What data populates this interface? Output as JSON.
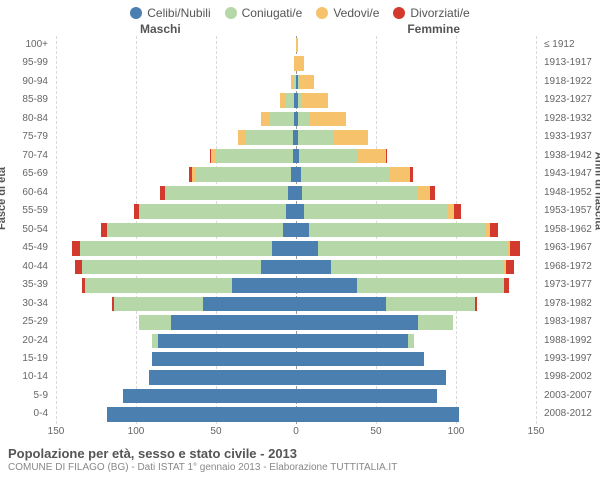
{
  "legend": [
    {
      "label": "Celibi/Nubili",
      "color": "#4a7fb0"
    },
    {
      "label": "Coniugati/e",
      "color": "#b6d7a8"
    },
    {
      "label": "Vedovi/e",
      "color": "#f6c26b"
    },
    {
      "label": "Divorziati/e",
      "color": "#d23a2e"
    }
  ],
  "side_labels": {
    "left": "Maschi",
    "right": "Femmine"
  },
  "axis_titles": {
    "left": "Fasce di età",
    "right": "Anni di nascita"
  },
  "age_labels": [
    "100+",
    "95-99",
    "90-94",
    "85-89",
    "80-84",
    "75-79",
    "70-74",
    "65-69",
    "60-64",
    "55-59",
    "50-54",
    "45-49",
    "40-44",
    "35-39",
    "30-34",
    "25-29",
    "20-24",
    "15-19",
    "10-14",
    "5-9",
    "0-4"
  ],
  "year_labels": [
    "≤ 1912",
    "1913-1917",
    "1918-1922",
    "1923-1927",
    "1928-1932",
    "1933-1937",
    "1938-1942",
    "1943-1947",
    "1948-1952",
    "1953-1957",
    "1958-1962",
    "1963-1967",
    "1968-1972",
    "1973-1977",
    "1978-1982",
    "1983-1987",
    "1988-1992",
    "1993-1997",
    "1998-2002",
    "2003-2007",
    "2008-2012"
  ],
  "xaxis": {
    "max": 150,
    "ticks": [
      150,
      100,
      50,
      0,
      50,
      100,
      150
    ]
  },
  "colors": {
    "single": "#4a7fb0",
    "married": "#b6d7a8",
    "widowed": "#f6c26b",
    "divorced": "#d23a2e",
    "grid": "#d9d9d9",
    "center": "#999999",
    "bg": "#ffffff"
  },
  "rows": [
    {
      "m": [
        0,
        0,
        0,
        0
      ],
      "f": [
        0,
        0,
        1,
        0
      ]
    },
    {
      "m": [
        0,
        0,
        1,
        0
      ],
      "f": [
        0,
        0,
        5,
        0
      ]
    },
    {
      "m": [
        0,
        1,
        2,
        0
      ],
      "f": [
        1,
        1,
        9,
        0
      ]
    },
    {
      "m": [
        1,
        6,
        3,
        0
      ],
      "f": [
        1,
        3,
        16,
        0
      ]
    },
    {
      "m": [
        1,
        16,
        5,
        0
      ],
      "f": [
        1,
        8,
        22,
        0
      ]
    },
    {
      "m": [
        2,
        30,
        4,
        0
      ],
      "f": [
        1,
        22,
        22,
        0
      ]
    },
    {
      "m": [
        2,
        48,
        3,
        1
      ],
      "f": [
        2,
        36,
        18,
        1
      ]
    },
    {
      "m": [
        3,
        60,
        2,
        2
      ],
      "f": [
        3,
        56,
        12,
        2
      ]
    },
    {
      "m": [
        5,
        76,
        1,
        3
      ],
      "f": [
        4,
        72,
        8,
        3
      ]
    },
    {
      "m": [
        6,
        92,
        0,
        3
      ],
      "f": [
        5,
        90,
        4,
        4
      ]
    },
    {
      "m": [
        8,
        110,
        0,
        4
      ],
      "f": [
        8,
        110,
        3,
        5
      ]
    },
    {
      "m": [
        15,
        120,
        0,
        5
      ],
      "f": [
        14,
        118,
        2,
        6
      ]
    },
    {
      "m": [
        22,
        112,
        0,
        4
      ],
      "f": [
        22,
        108,
        1,
        5
      ]
    },
    {
      "m": [
        40,
        92,
        0,
        2
      ],
      "f": [
        38,
        92,
        0,
        3
      ]
    },
    {
      "m": [
        58,
        56,
        0,
        1
      ],
      "f": [
        56,
        56,
        0,
        1
      ]
    },
    {
      "m": [
        78,
        20,
        0,
        0
      ],
      "f": [
        76,
        22,
        0,
        0
      ]
    },
    {
      "m": [
        86,
        4,
        0,
        0
      ],
      "f": [
        70,
        4,
        0,
        0
      ]
    },
    {
      "m": [
        90,
        0,
        0,
        0
      ],
      "f": [
        80,
        0,
        0,
        0
      ]
    },
    {
      "m": [
        92,
        0,
        0,
        0
      ],
      "f": [
        94,
        0,
        0,
        0
      ]
    },
    {
      "m": [
        108,
        0,
        0,
        0
      ],
      "f": [
        88,
        0,
        0,
        0
      ]
    },
    {
      "m": [
        118,
        0,
        0,
        0
      ],
      "f": [
        102,
        0,
        0,
        0
      ]
    }
  ],
  "title": "Popolazione per età, sesso e stato civile - 2013",
  "subtitle": "COMUNE DI FILAGO (BG) - Dati ISTAT 1° gennaio 2013 - Elaborazione TUTTITALIA.IT"
}
